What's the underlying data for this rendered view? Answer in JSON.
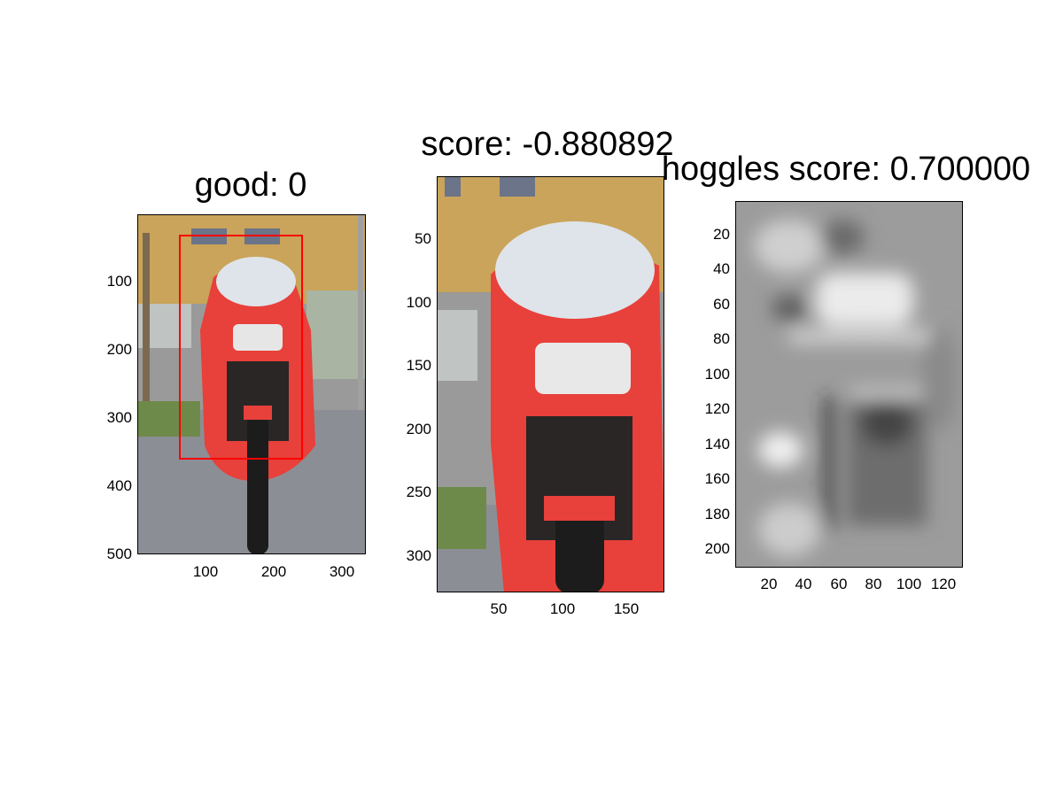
{
  "panels": [
    {
      "title": "good: 0",
      "image": "motorcycle-full-photo",
      "y_ticks": [
        "100",
        "200",
        "300",
        "400",
        "500"
      ],
      "x_ticks": [
        "100",
        "200",
        "300"
      ],
      "overlay": "red-bounding-box"
    },
    {
      "title": "score: -0.880892",
      "image": "motorcycle-crop-photo",
      "y_ticks": [
        "50",
        "100",
        "150",
        "200",
        "250",
        "300"
      ],
      "x_ticks": [
        "50",
        "100",
        "150"
      ]
    },
    {
      "title": "hoggles score: 0.700000",
      "image": "hoggles-grayscale-reconstruction",
      "y_ticks": [
        "20",
        "40",
        "60",
        "80",
        "100",
        "120",
        "140",
        "160",
        "180",
        "200"
      ],
      "x_ticks": [
        "20",
        "40",
        "60",
        "80",
        "100",
        "120"
      ]
    }
  ],
  "colors": {
    "box": "#ff0000",
    "bike": "#e8403a",
    "building": "#c9a45a"
  }
}
